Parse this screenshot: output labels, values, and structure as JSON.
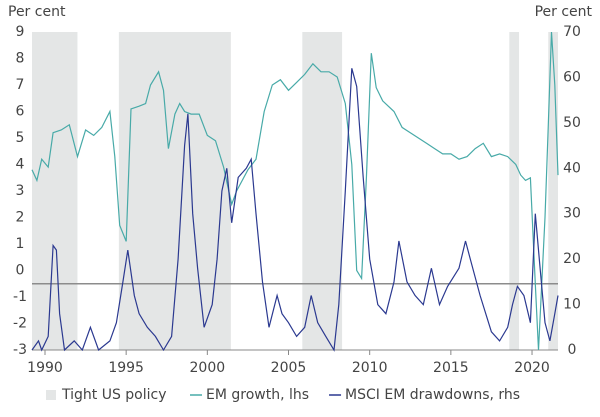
{
  "chart_data": {
    "type": "line",
    "ylabel": "Per cent",
    "y2label": "Per cent",
    "xlim": [
      1989.2,
      2021.6
    ],
    "xticks": [
      1990,
      1995,
      2000,
      2005,
      2010,
      2015,
      2020
    ],
    "ylim": [
      -3,
      9
    ],
    "yticks": [
      -3,
      -2,
      -1,
      0,
      1,
      2,
      3,
      4,
      5,
      6,
      7,
      8,
      9
    ],
    "y2lim": [
      0,
      70
    ],
    "y2ticks": [
      0,
      10,
      20,
      30,
      40,
      50,
      60,
      70
    ],
    "refline": {
      "value": -0.5,
      "color": "#8c8c8c"
    },
    "shaded": {
      "name": "Tight US policy",
      "color": "#e4e6e6",
      "periods": [
        [
          1989.2,
          1992.0
        ],
        [
          1994.55,
          2001.45
        ],
        [
          2005.85,
          2008.3
        ],
        [
          2018.6,
          2019.2
        ],
        [
          2021.0,
          2021.6
        ]
      ]
    },
    "series": [
      {
        "name": "EM growth, lhs",
        "color": "#48aaa8",
        "x": [
          1989.2,
          1989.5,
          1989.8,
          1990.2,
          1990.5,
          1991,
          1991.5,
          1992,
          1992.5,
          1993,
          1993.5,
          1994,
          1994.3,
          1994.6,
          1995,
          1995.3,
          1995.8,
          1996.2,
          1996.5,
          1997,
          1997.3,
          1997.6,
          1998,
          1998.3,
          1998.6,
          1999,
          1999.5,
          2000,
          2000.5,
          2001,
          2001.5,
          2001.8,
          2002.5,
          2003,
          2003.5,
          2004,
          2004.5,
          2005,
          2005.5,
          2006,
          2006.5,
          2007,
          2007.5,
          2008,
          2008.5,
          2008.9,
          2009.2,
          2009.5,
          2009.8,
          2010.1,
          2010.4,
          2010.8,
          2011.5,
          2012,
          2012.5,
          2013,
          2013.5,
          2014,
          2014.5,
          2015,
          2015.5,
          2016,
          2016.5,
          2017,
          2017.5,
          2018,
          2018.5,
          2019,
          2019.3,
          2019.6,
          2019.9,
          2020.2,
          2020.4,
          2020.8,
          2021.0,
          2021.2,
          2021.4,
          2021.6
        ],
        "values": [
          3.8,
          3.4,
          4.2,
          3.9,
          5.2,
          5.3,
          5.5,
          4.3,
          5.3,
          5.1,
          5.4,
          6.0,
          4.3,
          1.7,
          1.1,
          6.1,
          6.2,
          6.3,
          7.0,
          7.5,
          6.8,
          4.6,
          5.9,
          6.3,
          6.0,
          5.9,
          5.9,
          5.1,
          4.9,
          3.9,
          2.5,
          3.0,
          3.8,
          4.2,
          6.0,
          7.0,
          7.2,
          6.8,
          7.1,
          7.4,
          7.8,
          7.5,
          7.5,
          7.3,
          6.3,
          4.0,
          0.0,
          -0.3,
          3.5,
          8.2,
          6.9,
          6.4,
          6.0,
          5.4,
          5.2,
          5.0,
          4.8,
          4.6,
          4.4,
          4.4,
          4.2,
          4.3,
          4.6,
          4.8,
          4.3,
          4.4,
          4.3,
          4.0,
          3.6,
          3.4,
          3.5,
          -0.5,
          -3.0,
          2.0,
          5.5,
          9.0,
          7.0,
          3.6
        ]
      },
      {
        "name": "MSCI EM drawdowns, rhs",
        "color": "#2b3990",
        "axis": "y2",
        "x": [
          1989.2,
          1989.6,
          1989.8,
          1990.2,
          1990.5,
          1990.7,
          1990.9,
          1991.2,
          1991.8,
          1992.3,
          1992.8,
          1993.3,
          1994,
          1994.4,
          1994.8,
          1995.1,
          1995.5,
          1995.8,
          1996.3,
          1996.8,
          1997.3,
          1997.8,
          1998.2,
          1998.6,
          1998.8,
          1999.1,
          1999.4,
          1999.8,
          2000.3,
          2000.6,
          2000.9,
          2001.2,
          2001.5,
          2001.9,
          2002.4,
          2002.7,
          2003,
          2003.4,
          2003.8,
          2004.3,
          2004.6,
          2005,
          2005.5,
          2006,
          2006.4,
          2006.8,
          2007.3,
          2007.8,
          2008.1,
          2008.5,
          2008.9,
          2009.2,
          2009.6,
          2010,
          2010.5,
          2011,
          2011.5,
          2011.8,
          2012.3,
          2012.8,
          2013.3,
          2013.8,
          2014.3,
          2014.8,
          2015.5,
          2015.9,
          2016.2,
          2016.8,
          2017.5,
          2018.0,
          2018.5,
          2018.8,
          2019.1,
          2019.5,
          2019.9,
          2020.2,
          2020.5,
          2020.8,
          2021.1,
          2021.4,
          2021.6
        ],
        "values": [
          0,
          2,
          0,
          3,
          23,
          22,
          8,
          0,
          2,
          0,
          5,
          0,
          2,
          6,
          15,
          22,
          12,
          8,
          5,
          3,
          0,
          3,
          20,
          45,
          52,
          30,
          18,
          5,
          10,
          20,
          35,
          40,
          28,
          38,
          40,
          42,
          30,
          15,
          5,
          12,
          8,
          6,
          3,
          5,
          12,
          6,
          3,
          0,
          10,
          35,
          62,
          58,
          38,
          20,
          10,
          8,
          15,
          24,
          15,
          12,
          10,
          18,
          10,
          14,
          18,
          24,
          20,
          12,
          4,
          2,
          5,
          10,
          14,
          12,
          6,
          30,
          18,
          6,
          2,
          8,
          12
        ]
      }
    ]
  }
}
